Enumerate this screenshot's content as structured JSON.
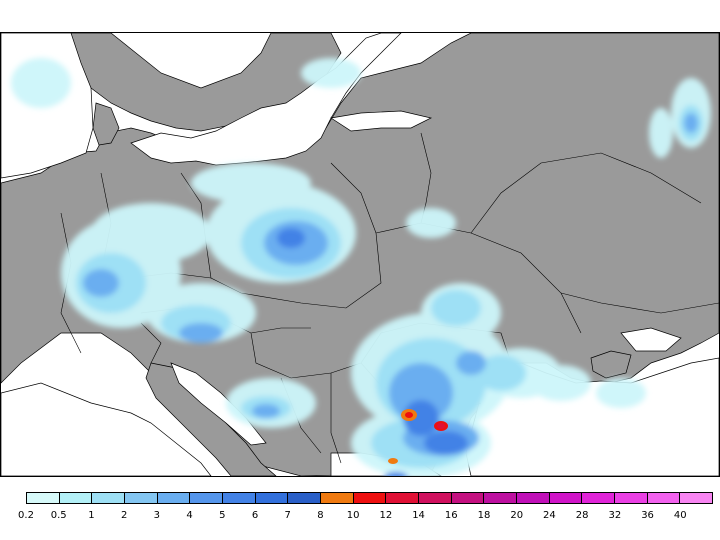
{
  "map": {
    "land_color": "#9a9a9a",
    "sea_color": "#ffffff",
    "border_color": "#000000",
    "region": "Europe — Baltic to Black Sea"
  },
  "legend": {
    "labels": [
      "0.2",
      "0.5",
      "1",
      "2",
      "3",
      "4",
      "5",
      "6",
      "7",
      "8",
      "10",
      "12",
      "14",
      "16",
      "18",
      "20",
      "24",
      "28",
      "32",
      "36",
      "40"
    ],
    "colors": [
      "#d7fafa",
      "#b3f0f7",
      "#9ee0f5",
      "#84c6f2",
      "#6aaef0",
      "#5596ec",
      "#4382e6",
      "#3270dc",
      "#2a5fc8",
      "#f07a10",
      "#ee1010",
      "#e01035",
      "#d0105e",
      "#c41080",
      "#bd10a0",
      "#c010b8",
      "#d014c8",
      "#e024d8",
      "#ea40e4",
      "#f262ee",
      "#f885f2"
    ]
  }
}
